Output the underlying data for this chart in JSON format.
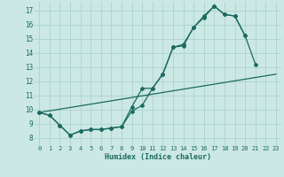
{
  "xlabel": "Humidex (Indice chaleur)",
  "bg_color": "#cce8e4",
  "grid_color": "#aad4cc",
  "line_color": "#1a6a60",
  "xlim": [
    -0.5,
    23.5
  ],
  "ylim": [
    7.5,
    17.6
  ],
  "yticks": [
    8,
    9,
    10,
    11,
    12,
    13,
    14,
    15,
    16,
    17
  ],
  "xticks": [
    0,
    1,
    2,
    3,
    4,
    5,
    6,
    7,
    8,
    9,
    10,
    11,
    12,
    13,
    14,
    15,
    16,
    17,
    18,
    19,
    20,
    21,
    22,
    23
  ],
  "line1_x": [
    0,
    1,
    2,
    3,
    4,
    5,
    6,
    7,
    8,
    9,
    10,
    11,
    12,
    13,
    14,
    15,
    16,
    17,
    18,
    19,
    20,
    21
  ],
  "line1_y": [
    9.8,
    9.6,
    8.9,
    8.2,
    8.5,
    8.6,
    8.6,
    8.7,
    8.8,
    9.9,
    10.3,
    11.5,
    12.5,
    14.4,
    14.6,
    15.8,
    16.6,
    17.3,
    16.7,
    16.6,
    15.2,
    13.2
  ],
  "line2_x": [
    0,
    1,
    2,
    3,
    4,
    5,
    6,
    7,
    8,
    9,
    10,
    11,
    12,
    13,
    14,
    15,
    16,
    17,
    18,
    19,
    20
  ],
  "line2_y": [
    9.8,
    9.6,
    8.9,
    8.2,
    8.5,
    8.6,
    8.6,
    8.7,
    8.8,
    10.2,
    11.5,
    11.5,
    12.5,
    14.4,
    14.5,
    15.8,
    16.5,
    17.3,
    16.7,
    16.6,
    15.2
  ],
  "line3_x": [
    0,
    23
  ],
  "line3_y": [
    9.8,
    12.5
  ],
  "marker": "D",
  "markersize": 2.0,
  "linewidth": 0.9
}
